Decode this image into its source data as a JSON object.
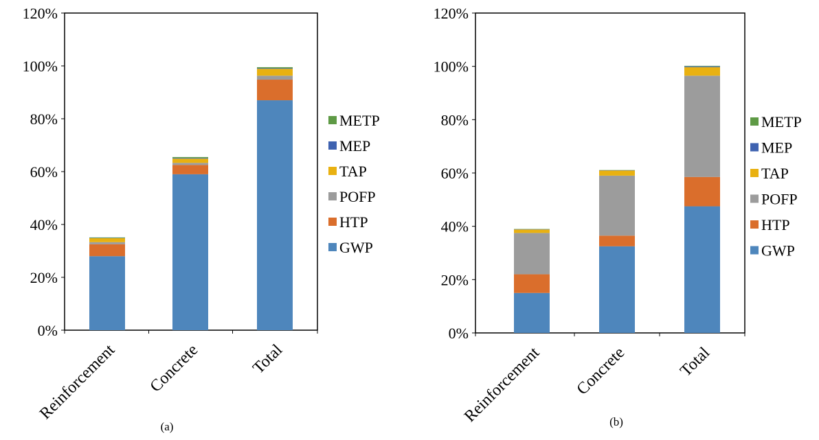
{
  "chart_data": [
    {
      "type": "bar",
      "stacked": true,
      "caption": "(a)",
      "categories": [
        "Reinforcement",
        "Concrete",
        "Total"
      ],
      "ylim": [
        0,
        120
      ],
      "ytick_labels": [
        "0%",
        "20%",
        "40%",
        "60%",
        "80%",
        "100%",
        "120%"
      ],
      "series": [
        {
          "name": "GWP",
          "color": "#4E86BC",
          "values": [
            28.0,
            59.0,
            87.0
          ]
        },
        {
          "name": "HTP",
          "color": "#DA6E2C",
          "values": [
            4.5,
            3.5,
            7.8
          ]
        },
        {
          "name": "POFP",
          "color": "#9C9C9C",
          "values": [
            0.8,
            0.8,
            1.5
          ]
        },
        {
          "name": "TAP",
          "color": "#E9B111",
          "values": [
            1.5,
            1.6,
            2.6
          ]
        },
        {
          "name": "MEP",
          "color": "#3E62B0",
          "values": [
            0.1,
            0.2,
            0.2
          ]
        },
        {
          "name": "METP",
          "color": "#5E9A45",
          "values": [
            0.2,
            0.4,
            0.4
          ]
        }
      ],
      "legend_position": "right"
    },
    {
      "type": "bar",
      "stacked": true,
      "caption": "(b)",
      "categories": [
        "Reinforcement",
        "Concrete",
        "Total"
      ],
      "ylim": [
        0,
        120
      ],
      "ytick_labels": [
        "0%",
        "20%",
        "40%",
        "60%",
        "80%",
        "100%",
        "120%"
      ],
      "series": [
        {
          "name": "GWP",
          "color": "#4E86BC",
          "values": [
            15.0,
            32.5,
            47.5
          ]
        },
        {
          "name": "HTP",
          "color": "#DA6E2C",
          "values": [
            7.0,
            4.0,
            11.0
          ]
        },
        {
          "name": "POFP",
          "color": "#9C9C9C",
          "values": [
            15.5,
            22.5,
            38.0
          ]
        },
        {
          "name": "TAP",
          "color": "#E9B111",
          "values": [
            1.3,
            1.9,
            3.2
          ]
        },
        {
          "name": "MEP",
          "color": "#3E62B0",
          "values": [
            0.1,
            0.1,
            0.3
          ]
        },
        {
          "name": "METP",
          "color": "#5E9A45",
          "values": [
            0.1,
            0.1,
            0.2
          ]
        }
      ],
      "legend_position": "right"
    }
  ]
}
